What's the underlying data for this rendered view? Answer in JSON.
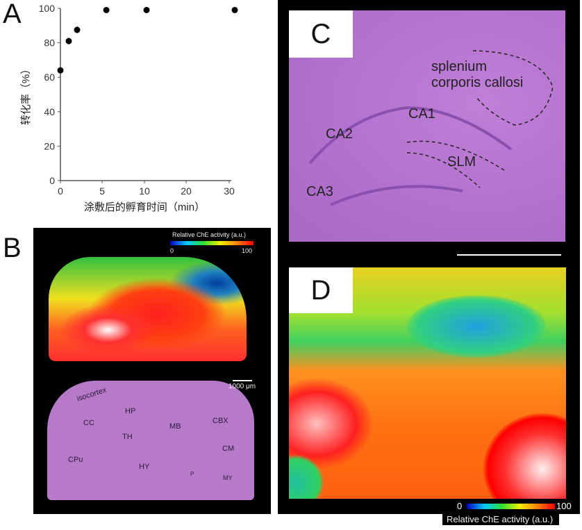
{
  "panels": {
    "a": "A",
    "b": "B",
    "c": "C",
    "d": "D"
  },
  "chart_data": {
    "type": "scatter",
    "title": "",
    "xlabel": "涂敷后的孵育时间（min）",
    "ylabel": "转化率（%）",
    "x_ticks": [
      "0",
      "5",
      "10",
      "20",
      "30"
    ],
    "y_ticks": [
      "0",
      "20",
      "40",
      "60",
      "80",
      "100"
    ],
    "ylim": [
      0,
      100
    ],
    "x": [
      0,
      1,
      2,
      5.5,
      10.5,
      31
    ],
    "y": [
      64,
      81,
      87.5,
      99,
      99,
      99
    ],
    "error": [
      0,
      2,
      2,
      0,
      0,
      0
    ],
    "grid": false
  },
  "panel_b": {
    "colorbar_title": "Relative ChE activity (a.u.)",
    "colorbar_min": "0",
    "colorbar_max": "100",
    "scale_bar": "1000 μm",
    "regions": [
      "isocortex",
      "CC",
      "HP",
      "TH",
      "MB",
      "CBX",
      "CM",
      "CPu",
      "HY",
      "P",
      "MY"
    ]
  },
  "panel_c": {
    "labels": [
      "splenium",
      "corporis callosi",
      "CA1",
      "CA2",
      "SLM",
      "CA3"
    ]
  },
  "panel_d": {
    "colorbar_min": "0",
    "colorbar_max": "100",
    "colorbar_title": "Relative ChE activity (a.u.)"
  },
  "colors": {
    "jet": [
      "#0000c8",
      "#00c8ff",
      "#30e030",
      "#f0f000",
      "#ff8000",
      "#ff0000"
    ],
    "he_stain": "#b070c8"
  }
}
